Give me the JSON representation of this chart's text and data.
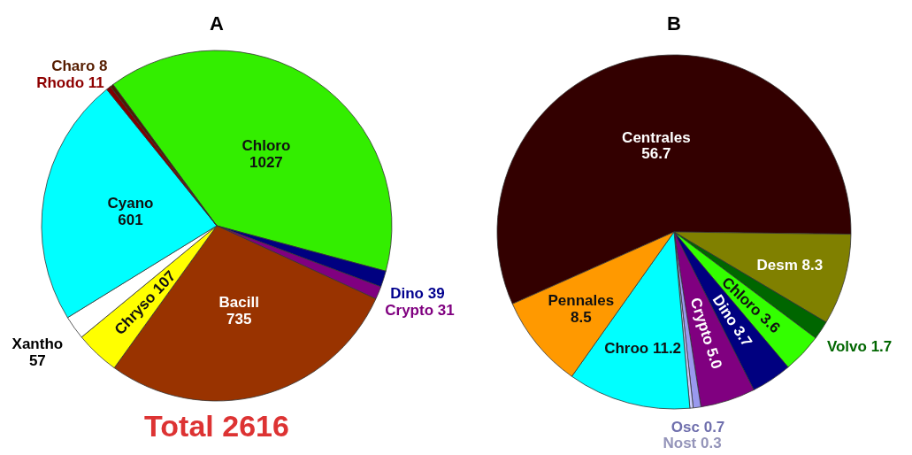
{
  "chart_data": [
    {
      "type": "pie",
      "title": "A",
      "categories": [
        "Chloro",
        "Dino",
        "Crypto",
        "Bacill",
        "Chryso",
        "Xantho",
        "Cyano",
        "Rhodo",
        "Charo"
      ],
      "values": [
        1027,
        39,
        31,
        735,
        107,
        57,
        601,
        11,
        8
      ],
      "value_labels": [
        "1027",
        "39",
        "31",
        "735",
        "107",
        "57",
        "601",
        "11",
        "8"
      ],
      "colors": [
        "#33ee00",
        "#000080",
        "#800080",
        "#993300",
        "#ffff00",
        "#ffffff",
        "#00ffff",
        "#800000",
        "#4d1a00"
      ],
      "annotations": [
        "Total 2616"
      ]
    },
    {
      "type": "pie",
      "title": "B",
      "categories": [
        "Centrales",
        "Desm",
        "Volvo",
        "Chloro",
        "Dino",
        "Crypto",
        "Osc",
        "Nost",
        "Chroo",
        "Pennales"
      ],
      "values": [
        56.7,
        8.3,
        1.7,
        3.6,
        3.7,
        5.0,
        0.7,
        0.3,
        11.2,
        8.5
      ],
      "value_labels": [
        "56.7",
        "8.3",
        "1.7",
        "3.6",
        "3.7",
        "5.0",
        "0.7",
        "0.3",
        "11.2",
        "8.5"
      ],
      "colors": [
        "#330000",
        "#808000",
        "#006600",
        "#33ff00",
        "#000080",
        "#800080",
        "#9999ee",
        "#ccccff",
        "#00ffff",
        "#ff9900"
      ]
    }
  ]
}
